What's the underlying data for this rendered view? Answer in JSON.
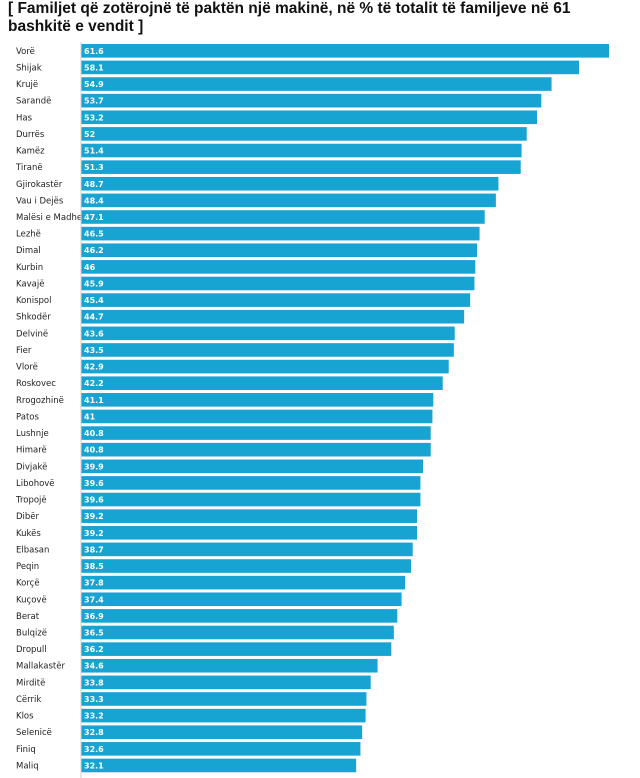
{
  "chart_data": {
    "type": "bar",
    "orientation": "horizontal",
    "title": "[ Familjet që zotërojnë të paktën një makinë, në % të totalit të familjeve në 61 bashkitë e vendit  ]",
    "bar_color": "#18a4d2",
    "xlim": [
      0,
      61.6
    ],
    "grid": false,
    "legend": "none",
    "categories": [
      "Vorë",
      "Shijak",
      "Krujë",
      "Sarandë",
      "Has",
      "Durrës",
      "Kamëz",
      "Tiranë",
      "Gjirokastër",
      "Vau i Dejës",
      "Malësi e Madhe",
      "Lezhë",
      "Dimal",
      "Kurbin",
      "Kavajë",
      "Konispol",
      "Shkodër",
      "Delvinë",
      "Fier",
      "Vlorë",
      "Roskovec",
      "Rrogozhinë",
      "Patos",
      "Lushnje",
      "Himarë",
      "Divjakë",
      "Libohovë",
      "Tropojë",
      "Dibër",
      "Kukës",
      "Elbasan",
      "Peqin",
      "Korçë",
      "Kuçovë",
      "Berat",
      "Bulqizë",
      "Dropull",
      "Mallakastër",
      "Mirditë",
      "Cërrik",
      "Klos",
      "Selenicë",
      "Finiq",
      "Maliq"
    ],
    "value_labels": [
      "61.6",
      "58.1",
      "54.9",
      "53.7",
      "53.2",
      "52",
      "51.4",
      "51.3",
      "48.7",
      "48.4",
      "47.1",
      "46.5",
      "46.2",
      "46",
      "45.9",
      "45.4",
      "44.7",
      "43.6",
      "43.5",
      "42.9",
      "42.2",
      "41.1",
      "41",
      "40.8",
      "40.8",
      "39.9",
      "39.6",
      "39.6",
      "39.2",
      "39.2",
      "38.7",
      "38.5",
      "37.8",
      "37.4",
      "36.9",
      "36.5",
      "36.2",
      "34.6",
      "33.8",
      "33.3",
      "33.2",
      "32.8",
      "32.6",
      "32.1"
    ],
    "values": [
      61.6,
      58.1,
      54.9,
      53.7,
      53.2,
      52,
      51.4,
      51.3,
      48.7,
      48.4,
      47.1,
      46.5,
      46.2,
      46,
      45.9,
      45.4,
      44.7,
      43.6,
      43.5,
      42.9,
      42.2,
      41.1,
      41,
      40.8,
      40.8,
      39.9,
      39.6,
      39.6,
      39.2,
      39.2,
      38.7,
      38.5,
      37.8,
      37.4,
      36.9,
      36.5,
      36.2,
      34.6,
      33.8,
      33.3,
      33.2,
      32.8,
      32.6,
      32.1
    ]
  }
}
